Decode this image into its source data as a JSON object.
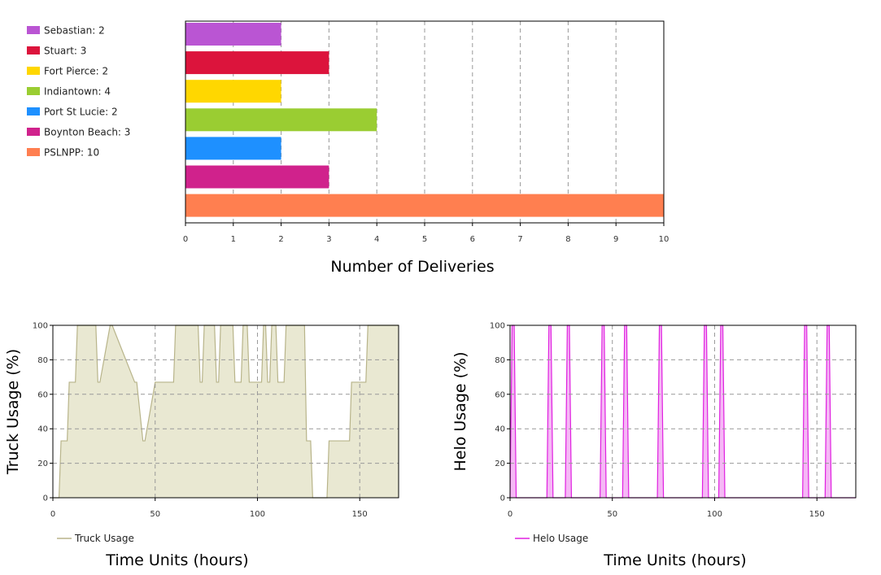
{
  "chart_data": [
    {
      "type": "bar",
      "orientation": "horizontal",
      "categories": [
        "Sebastian",
        "Stuart",
        "Fort Pierce",
        "Indiantown",
        "Port St Lucie",
        "Boynton Beach",
        "PSLNPP"
      ],
      "values": [
        2,
        3,
        2,
        4,
        2,
        3,
        10
      ],
      "colors": [
        "#ba55d3",
        "#dc143c",
        "#ffd700",
        "#9acd32",
        "#1e90ff",
        "#d0228c",
        "#ff7f50"
      ],
      "legend": [
        "Sebastian: 2",
        "Stuart: 3",
        "Fort Pierce: 2",
        "Indiantown: 4",
        "Port St Lucie: 2",
        "Boynton Beach: 3",
        "PSLNPP: 10"
      ],
      "legend_position": "left",
      "xlabel": "Number of Deliveries",
      "xlim": [
        0,
        10
      ],
      "xticks": [
        "0",
        "1",
        "2",
        "3",
        "4",
        "5",
        "6",
        "7",
        "8",
        "9",
        "10"
      ],
      "grid": true
    },
    {
      "type": "area",
      "series": [
        {
          "name": "Truck Usage",
          "color": "#b8b48a",
          "fill": "#e9e8d2"
        }
      ],
      "legend": [
        "Truck Usage"
      ],
      "legend_position": "bottom-left",
      "x": [
        0,
        3,
        4,
        7,
        8,
        11,
        12,
        21,
        22,
        23,
        28,
        29,
        40,
        41,
        44,
        45,
        50,
        51,
        59,
        60,
        71,
        72,
        73,
        74,
        79,
        80,
        81,
        82,
        88,
        89,
        92,
        93,
        95,
        96,
        102,
        103,
        104,
        105,
        106,
        107,
        109,
        110,
        113,
        114,
        123,
        124,
        126,
        127,
        134,
        135,
        145,
        146,
        153,
        154,
        169
      ],
      "y": [
        0,
        0,
        33,
        33,
        67,
        67,
        100,
        100,
        67,
        67,
        100,
        100,
        67,
        67,
        33,
        33,
        67,
        67,
        67,
        100,
        100,
        67,
        67,
        100,
        100,
        67,
        67,
        100,
        100,
        67,
        67,
        100,
        100,
        67,
        67,
        100,
        100,
        67,
        67,
        100,
        100,
        67,
        67,
        100,
        100,
        33,
        33,
        0,
        0,
        33,
        33,
        67,
        67,
        100,
        100
      ],
      "xlabel": "Time Units (hours)",
      "ylabel": "Truck Usage (%)",
      "xlim": [
        0,
        169
      ],
      "ylim": [
        0,
        100
      ],
      "xticks": [
        "0",
        "50",
        "100",
        "150"
      ],
      "yticks": [
        "0",
        "20",
        "40",
        "60",
        "80",
        "100"
      ],
      "grid": true
    },
    {
      "type": "area",
      "series": [
        {
          "name": "Helo Usage",
          "color": "#e020e0",
          "fill": "#f5b8f5"
        }
      ],
      "legend": [
        "Helo Usage"
      ],
      "legend_position": "bottom-left",
      "x": [
        0,
        1,
        2,
        3,
        4,
        18,
        19,
        20,
        21,
        27,
        28,
        29,
        30,
        44,
        45,
        46,
        47,
        55,
        56,
        57,
        58,
        72,
        73,
        74,
        75,
        94,
        95,
        96,
        97,
        102,
        103,
        104,
        105,
        143,
        144,
        145,
        146,
        154,
        155,
        156,
        157,
        169
      ],
      "y": [
        0,
        100,
        100,
        0,
        0,
        0,
        100,
        100,
        0,
        0,
        100,
        100,
        0,
        0,
        100,
        100,
        0,
        0,
        100,
        100,
        0,
        0,
        100,
        100,
        0,
        0,
        100,
        100,
        0,
        0,
        100,
        100,
        0,
        0,
        100,
        100,
        0,
        0,
        100,
        100,
        0,
        0
      ],
      "xlabel": "Time Units (hours)",
      "ylabel": "Helo Usage (%)",
      "xlim": [
        0,
        169
      ],
      "ylim": [
        0,
        100
      ],
      "xticks": [
        "0",
        "50",
        "100",
        "150"
      ],
      "yticks": [
        "0",
        "20",
        "40",
        "60",
        "80",
        "100"
      ],
      "grid": true
    }
  ]
}
